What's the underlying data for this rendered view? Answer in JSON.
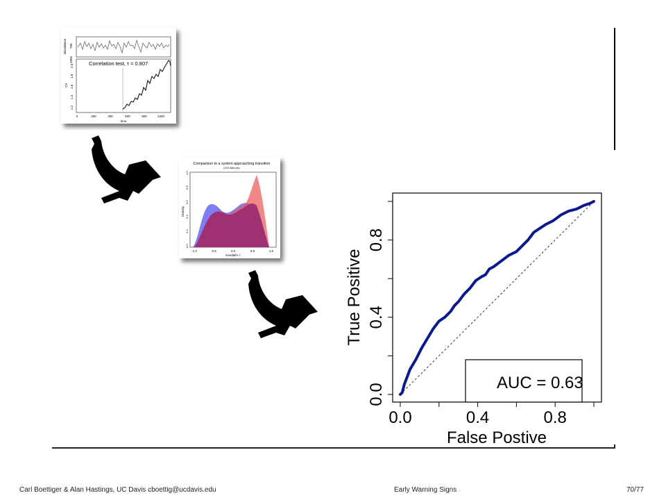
{
  "footer": {
    "authors": "Carl Boettiger & Alan Hastings, UC Davis cboettig@ucdavis.edu",
    "title": "Early Warning Signs",
    "page": "70/77"
  },
  "thumb1": {
    "annotation": "Correlation test, τ = 0.807",
    "xlabel": "time",
    "ylabel_top": "abundance",
    "ylabel_bottom": "CV",
    "x_ticks": [
      "0",
      "200",
      "400",
      "600",
      "800",
      "1000"
    ],
    "y_ticks_top": [
      "790",
      "2850"
    ],
    "y_ticks_bottom": [
      "1.2",
      "1.4",
      "1.6",
      "1.8",
      "2.0"
    ]
  },
  "thumb2": {
    "title": "Comparison to a system approaching transition",
    "subtitle": "(100 data pts)",
    "xlabel": "Kendall's τ",
    "ylabel": "Density",
    "x_ticks": [
      "-1.0",
      "-0.5",
      "0.0",
      "0.5",
      "1.0"
    ],
    "y_ticks": [
      "0.0",
      "0.2",
      "0.4",
      "0.6",
      "0.8",
      "1.0"
    ]
  },
  "roc": {
    "xlabel": "False Postive",
    "ylabel": "True Positive",
    "auc_label": "AUC =  0.63",
    "x_ticks": [
      "0.0",
      "0.4",
      "0.8"
    ],
    "y_ticks": [
      "0.0",
      "0.4",
      "0.8"
    ],
    "line_color": "#0a1a8c"
  },
  "chart_data": [
    {
      "type": "line",
      "title": "",
      "xlabel": "False Postive",
      "ylabel": "True Positive",
      "xlim": [
        0,
        1
      ],
      "ylim": [
        0,
        1
      ],
      "annotation": "AUC =  0.63",
      "series": [
        {
          "x": [
            0.0,
            0.01,
            0.02,
            0.05,
            0.08,
            0.11,
            0.14,
            0.17,
            0.2,
            0.23,
            0.26,
            0.28,
            0.3,
            0.33,
            0.36,
            0.39,
            0.42,
            0.44,
            0.46,
            0.48,
            0.52,
            0.56,
            0.6,
            0.63,
            0.66,
            0.69,
            0.72,
            0.75,
            0.79,
            0.83,
            0.87,
            0.91,
            0.95,
            0.98,
            1.0
          ],
          "y": [
            0.0,
            0.01,
            0.05,
            0.13,
            0.18,
            0.24,
            0.29,
            0.34,
            0.38,
            0.4,
            0.43,
            0.46,
            0.48,
            0.52,
            0.55,
            0.59,
            0.61,
            0.62,
            0.65,
            0.66,
            0.69,
            0.72,
            0.74,
            0.77,
            0.8,
            0.84,
            0.86,
            0.88,
            0.9,
            0.93,
            0.95,
            0.96,
            0.98,
            0.99,
            1.0
          ]
        },
        {
          "style": "dashed",
          "x": [
            0,
            1
          ],
          "y": [
            0,
            1
          ]
        }
      ]
    }
  ]
}
